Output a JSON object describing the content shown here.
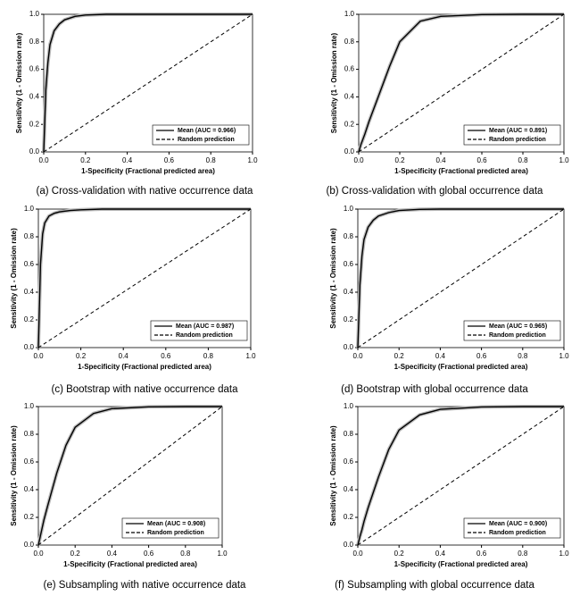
{
  "chart_data": [
    {
      "type": "line",
      "caption": "(a) Cross-validation with native occurrence data",
      "xlabel": "1-Specificity (Fractional predicted area)",
      "ylabel": "Sensitivity (1 - Omission rate)",
      "xlim": [
        0,
        1
      ],
      "ylim": [
        0,
        1
      ],
      "xticks": [
        {
          "value": 0,
          "label": "0.0"
        },
        {
          "value": 0.2,
          "label": "0.2"
        },
        {
          "value": 0.4,
          "label": "0.4"
        },
        {
          "value": 0.6,
          "label": "0.6"
        },
        {
          "value": 0.8,
          "label": "0.8"
        },
        {
          "value": 1,
          "label": "1.0"
        }
      ],
      "yticks": [
        {
          "value": 0,
          "label": "0.0"
        },
        {
          "value": 0.2,
          "label": "0.2"
        },
        {
          "value": 0.4,
          "label": "0.4"
        },
        {
          "value": 0.6,
          "label": "0.6"
        },
        {
          "value": 0.8,
          "label": "0.8"
        },
        {
          "value": 1,
          "label": "1.0"
        }
      ],
      "legend": "lower right",
      "x": [
        0,
        0.01,
        0.02,
        0.03,
        0.05,
        0.075,
        0.1,
        0.15,
        0.2,
        0.3,
        0.4,
        0.6,
        0.8,
        1
      ],
      "series": [
        {
          "name": "Mean (AUC = 0.966)",
          "color": "#000000",
          "style": "solid",
          "values": [
            0,
            0.45,
            0.65,
            0.78,
            0.88,
            0.93,
            0.96,
            0.985,
            0.995,
            1,
            1,
            1,
            1,
            1
          ]
        },
        {
          "name": "Random prediction",
          "color": "#000000",
          "style": "dashed",
          "values": [
            0,
            0.01,
            0.02,
            0.03,
            0.05,
            0.075,
            0.1,
            0.15,
            0.2,
            0.3,
            0.4,
            0.6,
            0.8,
            1
          ]
        }
      ]
    },
    {
      "type": "line",
      "caption": "(b) Cross-validation with global occurrence data",
      "xlabel": "1-Specificity (Fractional predicted area)",
      "ylabel": "Sensitivity (1 - Omission rate)",
      "xlim": [
        0,
        1
      ],
      "ylim": [
        0,
        1
      ],
      "xticks": [
        {
          "value": 0,
          "label": "0.0"
        },
        {
          "value": 0.2,
          "label": "0.2"
        },
        {
          "value": 0.4,
          "label": "0.4"
        },
        {
          "value": 0.6,
          "label": "0.6"
        },
        {
          "value": 0.8,
          "label": "0.8"
        },
        {
          "value": 1,
          "label": "1.0"
        }
      ],
      "yticks": [
        {
          "value": 0,
          "label": "0.0"
        },
        {
          "value": 0.2,
          "label": "0.2"
        },
        {
          "value": 0.4,
          "label": "0.4"
        },
        {
          "value": 0.6,
          "label": "0.6"
        },
        {
          "value": 0.8,
          "label": "0.8"
        },
        {
          "value": 1,
          "label": "1.0"
        }
      ],
      "legend": "lower right",
      "x": [
        0,
        0.01,
        0.02,
        0.03,
        0.05,
        0.075,
        0.1,
        0.15,
        0.2,
        0.3,
        0.4,
        0.6,
        0.8,
        1
      ],
      "series": [
        {
          "name": "Mean (AUC = 0.891)",
          "color": "#000000",
          "style": "solid",
          "values": [
            0,
            0.05,
            0.09,
            0.13,
            0.22,
            0.32,
            0.42,
            0.62,
            0.8,
            0.95,
            0.985,
            0.998,
            1,
            1
          ]
        },
        {
          "name": "Random prediction",
          "color": "#000000",
          "style": "dashed",
          "values": [
            0,
            0.01,
            0.02,
            0.03,
            0.05,
            0.075,
            0.1,
            0.15,
            0.2,
            0.3,
            0.4,
            0.6,
            0.8,
            1
          ]
        }
      ]
    },
    {
      "type": "line",
      "caption": "(c) Bootstrap with native occurrence data",
      "xlabel": "1-Specificity (Fractional predicted area)",
      "ylabel": "Sensitivity (1 - Omission rate)",
      "xlim": [
        0,
        1
      ],
      "ylim": [
        0,
        1
      ],
      "xticks": [
        {
          "value": 0,
          "label": "0.0"
        },
        {
          "value": 0.2,
          "label": "0.2"
        },
        {
          "value": 0.4,
          "label": "0.4"
        },
        {
          "value": 0.6,
          "label": "0.6"
        },
        {
          "value": 0.8,
          "label": "0.8"
        },
        {
          "value": 1,
          "label": "1.0"
        }
      ],
      "yticks": [
        {
          "value": 0,
          "label": "0.0"
        },
        {
          "value": 0.2,
          "label": "0.2"
        },
        {
          "value": 0.4,
          "label": "0.4"
        },
        {
          "value": 0.6,
          "label": "0.6"
        },
        {
          "value": 0.8,
          "label": "0.8"
        },
        {
          "value": 1,
          "label": "1.0"
        }
      ],
      "legend": "lower right",
      "x": [
        0,
        0.01,
        0.02,
        0.03,
        0.05,
        0.075,
        0.1,
        0.15,
        0.2,
        0.3,
        0.4,
        0.6,
        0.8,
        1
      ],
      "series": [
        {
          "name": "Mean (AUC = 0.987)",
          "color": "#000000",
          "style": "solid",
          "values": [
            0,
            0.6,
            0.82,
            0.9,
            0.95,
            0.97,
            0.98,
            0.99,
            0.995,
            1,
            1,
            1,
            1,
            1
          ]
        },
        {
          "name": "Random prediction",
          "color": "#000000",
          "style": "dashed",
          "values": [
            0,
            0.01,
            0.02,
            0.03,
            0.05,
            0.075,
            0.1,
            0.15,
            0.2,
            0.3,
            0.4,
            0.6,
            0.8,
            1
          ]
        }
      ]
    },
    {
      "type": "line",
      "caption": "(d) Bootstrap with global occurrence data",
      "xlabel": "1-Specificity (Fractional predicted area)",
      "ylabel": "Sensitivity (1 - Omission rate)",
      "xlim": [
        0,
        1
      ],
      "ylim": [
        0,
        1
      ],
      "xticks": [
        {
          "value": 0,
          "label": "0.0"
        },
        {
          "value": 0.2,
          "label": "0.2"
        },
        {
          "value": 0.4,
          "label": "0.4"
        },
        {
          "value": 0.6,
          "label": "0.6"
        },
        {
          "value": 0.8,
          "label": "0.8"
        },
        {
          "value": 1,
          "label": "1.0"
        }
      ],
      "yticks": [
        {
          "value": 0,
          "label": "0.0"
        },
        {
          "value": 0.2,
          "label": "0.2"
        },
        {
          "value": 0.4,
          "label": "0.4"
        },
        {
          "value": 0.6,
          "label": "0.6"
        },
        {
          "value": 0.8,
          "label": "0.8"
        },
        {
          "value": 1,
          "label": "1.0"
        }
      ],
      "legend": "lower right",
      "x": [
        0,
        0.01,
        0.02,
        0.03,
        0.05,
        0.075,
        0.1,
        0.15,
        0.2,
        0.3,
        0.4,
        0.6,
        0.8,
        1
      ],
      "series": [
        {
          "name": "Mean (AUC = 0.965)",
          "color": "#000000",
          "style": "solid",
          "values": [
            0,
            0.45,
            0.66,
            0.78,
            0.87,
            0.92,
            0.95,
            0.975,
            0.99,
            0.998,
            1,
            1,
            1,
            1
          ]
        },
        {
          "name": "Random prediction",
          "color": "#000000",
          "style": "dashed",
          "values": [
            0,
            0.01,
            0.02,
            0.03,
            0.05,
            0.075,
            0.1,
            0.15,
            0.2,
            0.3,
            0.4,
            0.6,
            0.8,
            1
          ]
        }
      ]
    },
    {
      "type": "line",
      "caption": "(e) Subsampling with native occurrence data",
      "xlabel": "1-Specificity (Fractional predicted area)",
      "ylabel": "Sensitivity (1 - Omission rate)",
      "xlim": [
        0,
        1
      ],
      "ylim": [
        0,
        1
      ],
      "xticks": [
        {
          "value": 0,
          "label": "0.0"
        },
        {
          "value": 0.2,
          "label": "0.2"
        },
        {
          "value": 0.4,
          "label": "0.4"
        },
        {
          "value": 0.6,
          "label": "0.6"
        },
        {
          "value": 0.8,
          "label": "0.8"
        },
        {
          "value": 1,
          "label": "1.0"
        }
      ],
      "yticks": [
        {
          "value": 0,
          "label": "0.0"
        },
        {
          "value": 0.2,
          "label": "0.2"
        },
        {
          "value": 0.4,
          "label": "0.4"
        },
        {
          "value": 0.6,
          "label": "0.6"
        },
        {
          "value": 0.8,
          "label": "0.8"
        },
        {
          "value": 1,
          "label": "1.0"
        }
      ],
      "legend": "lower right",
      "x": [
        0,
        0.01,
        0.02,
        0.03,
        0.05,
        0.075,
        0.1,
        0.15,
        0.2,
        0.3,
        0.4,
        0.6,
        0.8,
        1
      ],
      "series": [
        {
          "name": "Mean (AUC = 0.908)",
          "color": "#000000",
          "style": "solid",
          "values": [
            0,
            0.06,
            0.12,
            0.18,
            0.28,
            0.4,
            0.52,
            0.72,
            0.85,
            0.95,
            0.985,
            0.998,
            1,
            1
          ]
        },
        {
          "name": "Random prediction",
          "color": "#000000",
          "style": "dashed",
          "values": [
            0,
            0.01,
            0.02,
            0.03,
            0.05,
            0.075,
            0.1,
            0.15,
            0.2,
            0.3,
            0.4,
            0.6,
            0.8,
            1
          ]
        }
      ]
    },
    {
      "type": "line",
      "caption": "(f) Subsampling with global occurrence data",
      "xlabel": "1-Specificity (Fractional predicted area)",
      "ylabel": "Sensitivity (1 - Omission rate)",
      "xlim": [
        0,
        1
      ],
      "ylim": [
        0,
        1
      ],
      "xticks": [
        {
          "value": 0,
          "label": "0.0"
        },
        {
          "value": 0.2,
          "label": "0.2"
        },
        {
          "value": 0.4,
          "label": "0.4"
        },
        {
          "value": 0.6,
          "label": "0.6"
        },
        {
          "value": 0.8,
          "label": "0.8"
        },
        {
          "value": 1,
          "label": "1.0"
        }
      ],
      "yticks": [
        {
          "value": 0,
          "label": "0.0"
        },
        {
          "value": 0.2,
          "label": "0.2"
        },
        {
          "value": 0.4,
          "label": "0.4"
        },
        {
          "value": 0.6,
          "label": "0.6"
        },
        {
          "value": 0.8,
          "label": "0.8"
        },
        {
          "value": 1,
          "label": "1.0"
        }
      ],
      "legend": "lower right",
      "x": [
        0,
        0.01,
        0.02,
        0.03,
        0.05,
        0.075,
        0.1,
        0.15,
        0.2,
        0.3,
        0.4,
        0.6,
        0.8,
        1
      ],
      "series": [
        {
          "name": "Mean (AUC = 0.900)",
          "color": "#000000",
          "style": "solid",
          "values": [
            0,
            0.06,
            0.11,
            0.17,
            0.27,
            0.38,
            0.49,
            0.69,
            0.83,
            0.94,
            0.98,
            0.997,
            1,
            1
          ]
        },
        {
          "name": "Random prediction",
          "color": "#000000",
          "style": "dashed",
          "values": [
            0,
            0.01,
            0.02,
            0.03,
            0.05,
            0.075,
            0.1,
            0.15,
            0.2,
            0.3,
            0.4,
            0.6,
            0.8,
            1
          ]
        }
      ]
    }
  ]
}
